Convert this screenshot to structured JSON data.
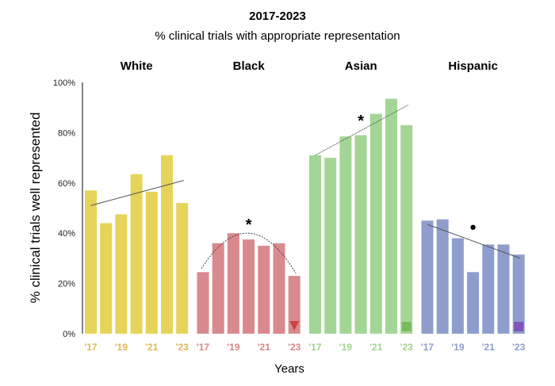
{
  "chart_data": {
    "type": "bar",
    "title": "2017-2023",
    "subtitle": "% clinical trials with appropriate representation",
    "xlabel": "Years",
    "ylabel": "% clinical trials well represented",
    "ylim": [
      0,
      100
    ],
    "yticks": [
      "0%",
      "20%",
      "40%",
      "60%",
      "80%",
      "100%"
    ],
    "ytick_values": [
      0,
      20,
      40,
      60,
      80,
      100
    ],
    "categories": [
      "2017",
      "2018",
      "2019",
      "2020",
      "2021",
      "2022",
      "2023"
    ],
    "xtick_labels": [
      "'17",
      "'19",
      "'21",
      "'23"
    ],
    "grid": false,
    "series": [
      {
        "name": "White",
        "color": "#e6d45a",
        "tick_color": "#e2b655",
        "values": [
          57,
          44,
          47.5,
          63.5,
          56.5,
          71,
          52
        ],
        "trend": "linear",
        "trend_range": [
          51,
          61
        ],
        "annotation": "",
        "marker": "none"
      },
      {
        "name": "Black",
        "color": "#d98a8e",
        "tick_color": "#d98585",
        "values": [
          24.5,
          36,
          40,
          37.5,
          35,
          36,
          23
        ],
        "trend": "quadratic",
        "trend_range": [
          26,
          40,
          24
        ],
        "annotation": "*",
        "marker": "triangle-down",
        "marker_color": "#c9423e"
      },
      {
        "name": "Asian",
        "color": "#a3d696",
        "tick_color": "#9fd48f",
        "values": [
          71,
          70,
          78.5,
          79,
          87.5,
          93.5,
          83
        ],
        "trend": "linear",
        "trend_range": [
          71,
          91
        ],
        "annotation": "*",
        "marker": "square",
        "marker_color": "#79bb5c"
      },
      {
        "name": "Hispanic",
        "color": "#8f9dcc",
        "tick_color": "#8f9dcc",
        "values": [
          45,
          45.5,
          38,
          24.5,
          35.5,
          35.5,
          31.5
        ],
        "trend": "linear",
        "trend_range": [
          43.5,
          30
        ],
        "annotation": "•",
        "marker": "square",
        "marker_color": "#7f56b8"
      }
    ]
  }
}
